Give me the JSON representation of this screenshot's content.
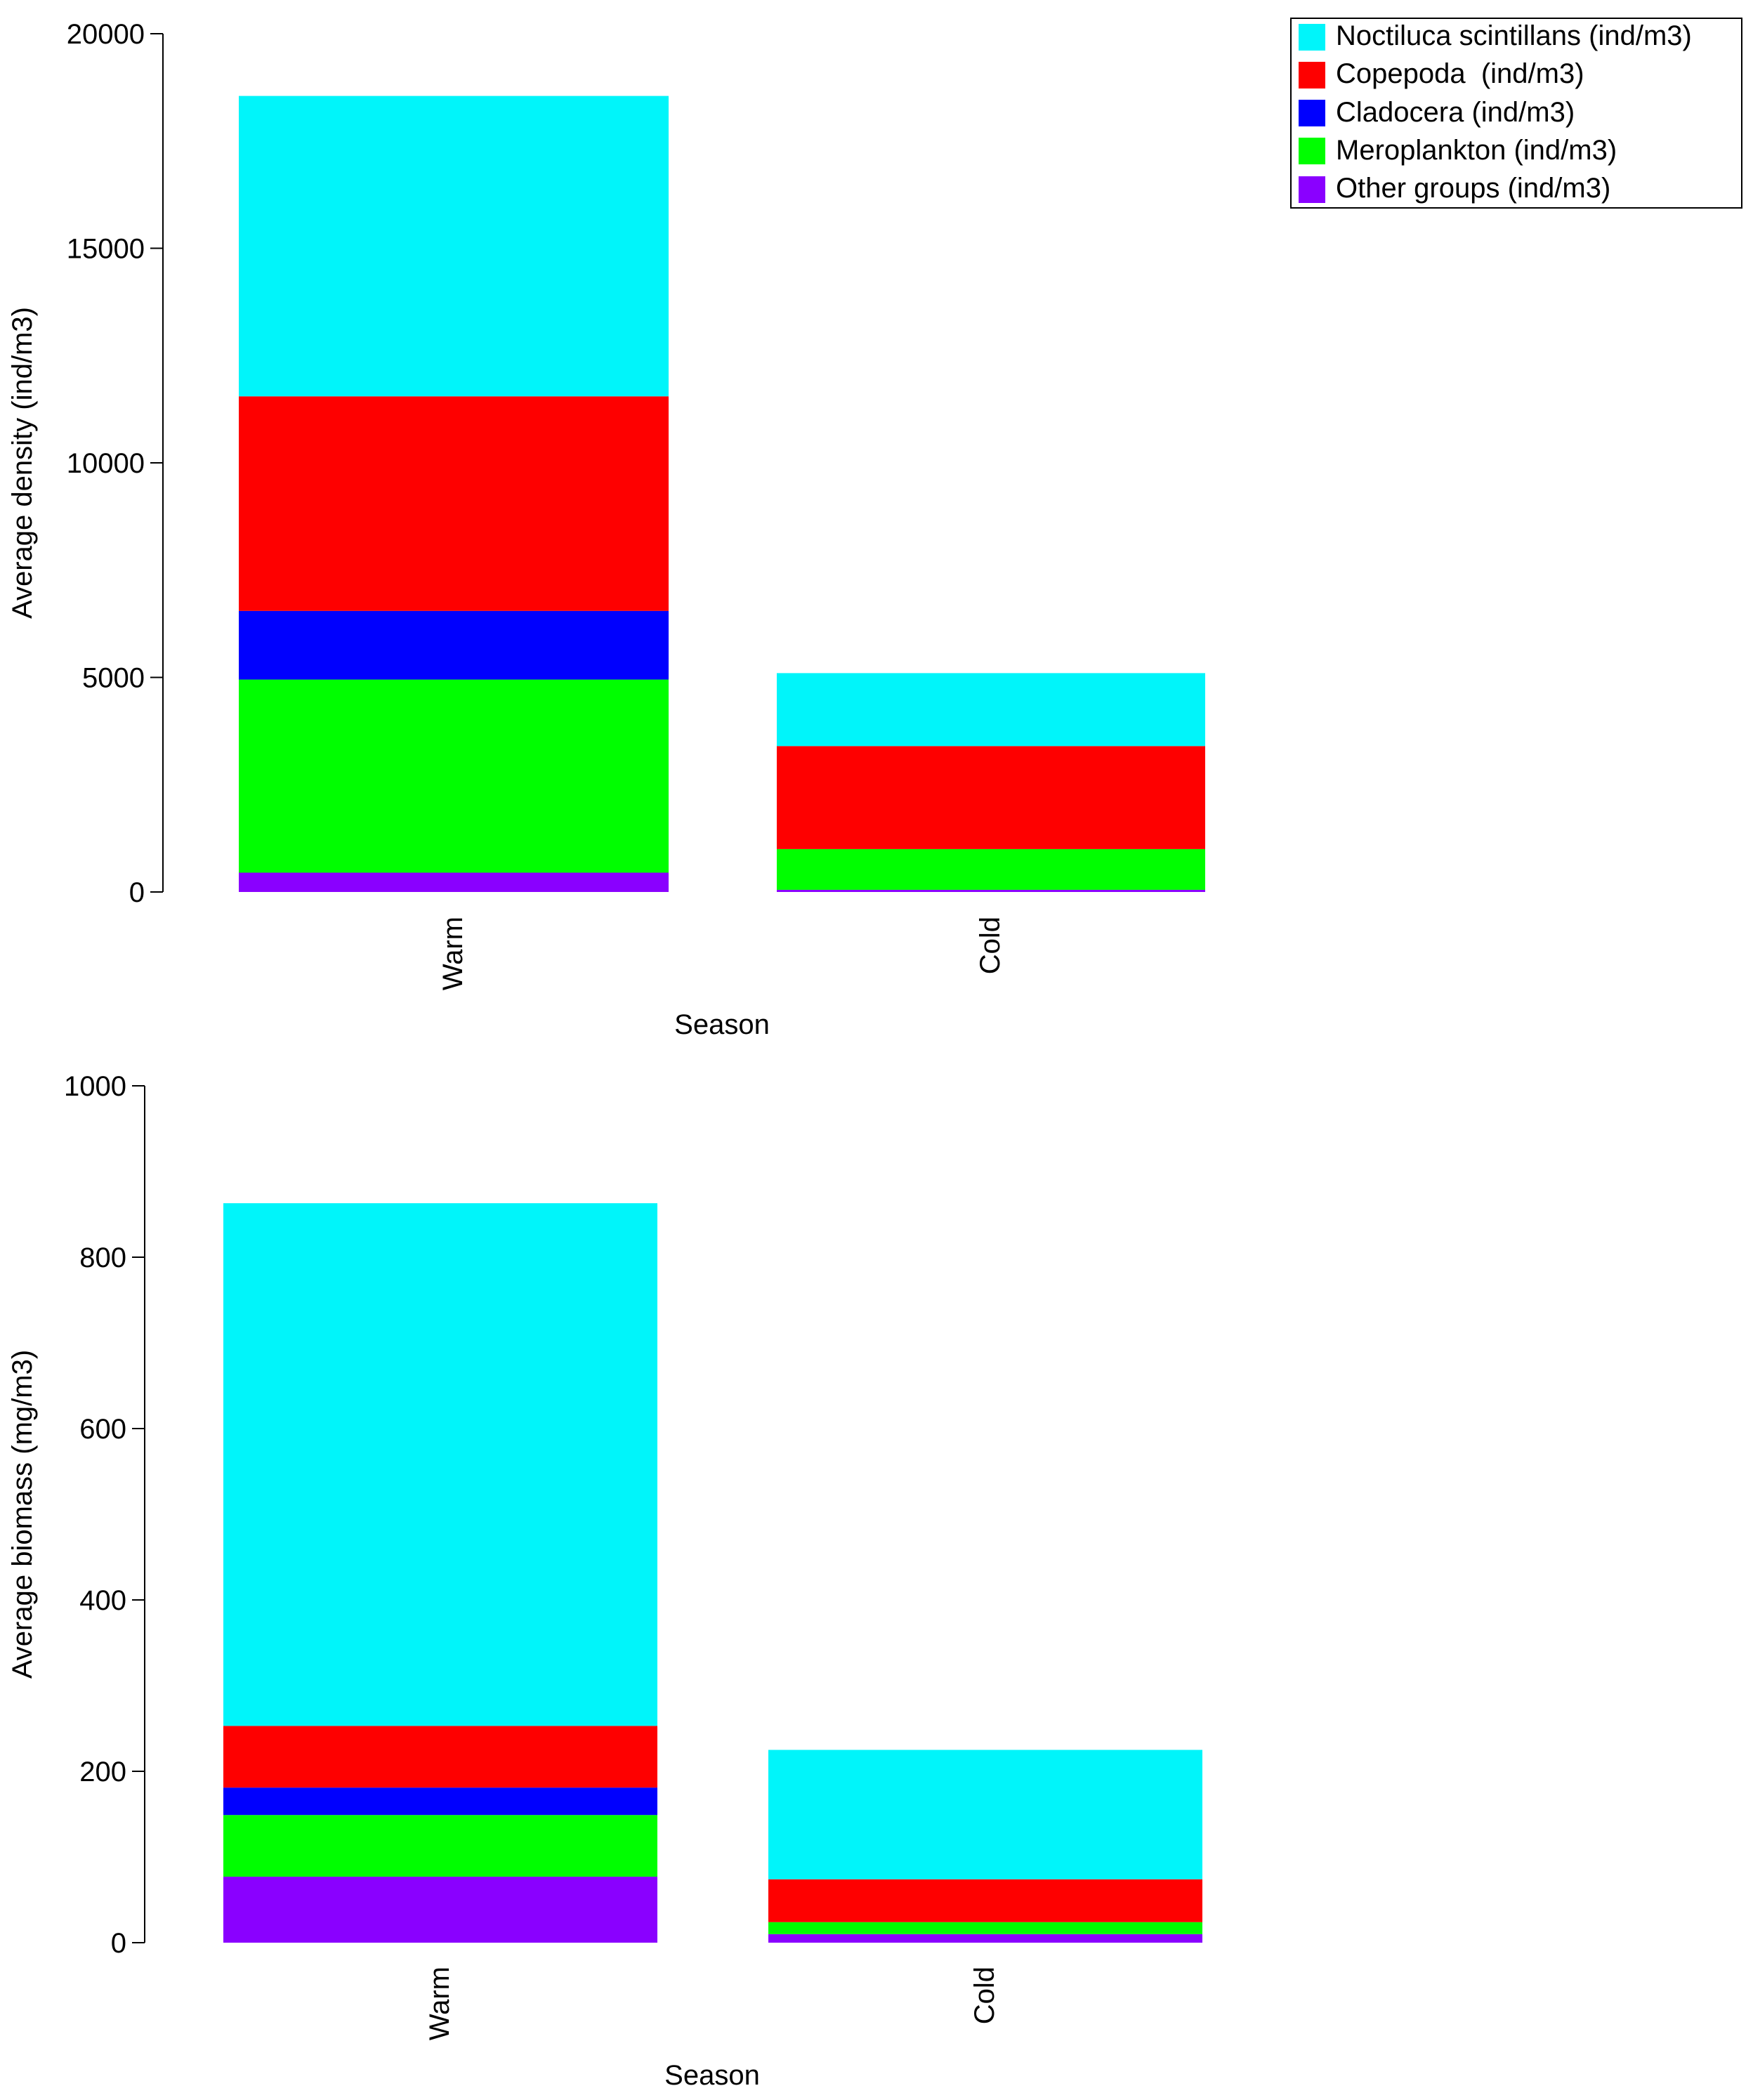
{
  "legend": {
    "entries": [
      {
        "label": "Noctiluca scintillans (ind/m3)",
        "color": "#00f5fa"
      },
      {
        "label": "Copepoda  (ind/m3)",
        "color": "#fe0000"
      },
      {
        "label": "Cladocera (ind/m3)",
        "color": "#0000fe"
      },
      {
        "label": "Meroplankton (ind/m3)",
        "color": "#00fe00"
      },
      {
        "label": "Other groups (ind/m3)",
        "color": "#8a00ff"
      }
    ]
  },
  "chart_data": [
    {
      "type": "bar",
      "stacked": true,
      "title": "",
      "xlabel": "Season",
      "ylabel": "Average density (ind/m3)",
      "ylim": [
        0,
        20000
      ],
      "yticks": [
        0,
        5000,
        10000,
        15000,
        20000
      ],
      "categories": [
        "Warm",
        "Cold"
      ],
      "series": [
        {
          "name": "Other groups",
          "color": "#8a00ff",
          "values": [
            450,
            50
          ]
        },
        {
          "name": "Meroplankton",
          "color": "#00fe00",
          "values": [
            4500,
            950
          ]
        },
        {
          "name": "Cladocera",
          "color": "#0000fe",
          "values": [
            1600,
            0
          ]
        },
        {
          "name": "Copepoda",
          "color": "#fe0000",
          "values": [
            5000,
            2400
          ]
        },
        {
          "name": "Noctiluca scintillans",
          "color": "#00f5fa",
          "values": [
            7000,
            1700
          ]
        }
      ]
    },
    {
      "type": "bar",
      "stacked": true,
      "title": "",
      "xlabel": "Season",
      "ylabel": "Average biomass (mg/m3)",
      "ylim": [
        0,
        1000
      ],
      "yticks": [
        0,
        200,
        400,
        600,
        800,
        1000
      ],
      "categories": [
        "Warm",
        "Cold"
      ],
      "series": [
        {
          "name": "Other groups",
          "color": "#8a00ff",
          "values": [
            77,
            10
          ]
        },
        {
          "name": "Meroplankton",
          "color": "#00fe00",
          "values": [
            72,
            14
          ]
        },
        {
          "name": "Cladocera",
          "color": "#0000fe",
          "values": [
            32,
            0
          ]
        },
        {
          "name": "Copepoda",
          "color": "#fe0000",
          "values": [
            72,
            50
          ]
        },
        {
          "name": "Noctiluca scintillans",
          "color": "#00f5fa",
          "values": [
            610,
            151
          ]
        }
      ]
    }
  ]
}
